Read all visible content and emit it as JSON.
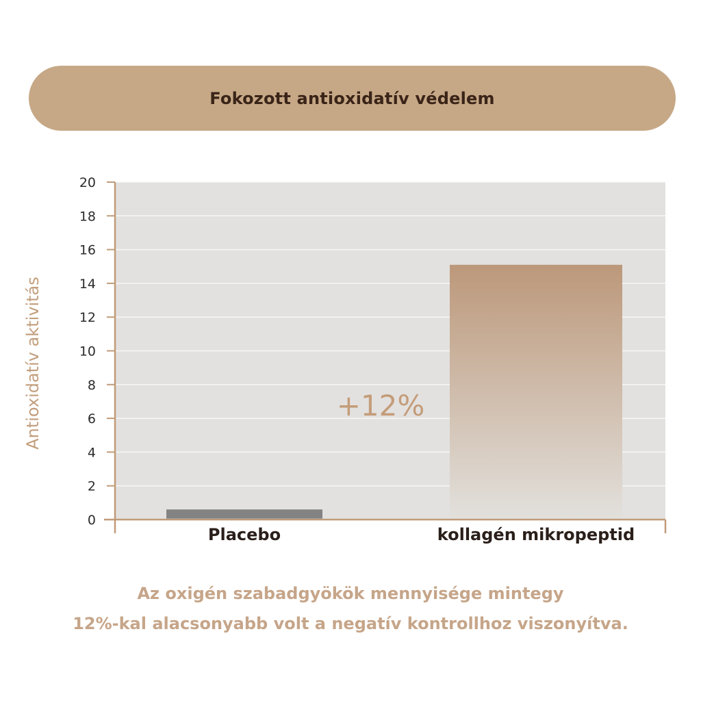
{
  "header": {
    "title": "Fokozott antioxidatív védelem"
  },
  "chart_data": {
    "type": "bar",
    "categories": [
      "Placebo",
      "kollagén mikropeptid"
    ],
    "values": [
      0.6,
      15.1
    ],
    "ylabel": "Antioxidatív aktivitás",
    "ylim": [
      0,
      20
    ],
    "yticks": [
      0,
      2,
      4,
      6,
      8,
      10,
      12,
      14,
      16,
      18,
      20
    ],
    "grid": true,
    "annotation": "+12%",
    "colors": {
      "placebo": "#838383",
      "product_top": "#bc987a",
      "product_bottom": "#e2e0dc",
      "plot_bg": "#e2e1df",
      "axis": "#c09b79"
    }
  },
  "caption": {
    "line1": "Az oxigén szabadgyökök mennyisége mintegy",
    "line2": "12%-kal alacsonyabb volt a negatív kontrollhoz viszonyítva."
  }
}
